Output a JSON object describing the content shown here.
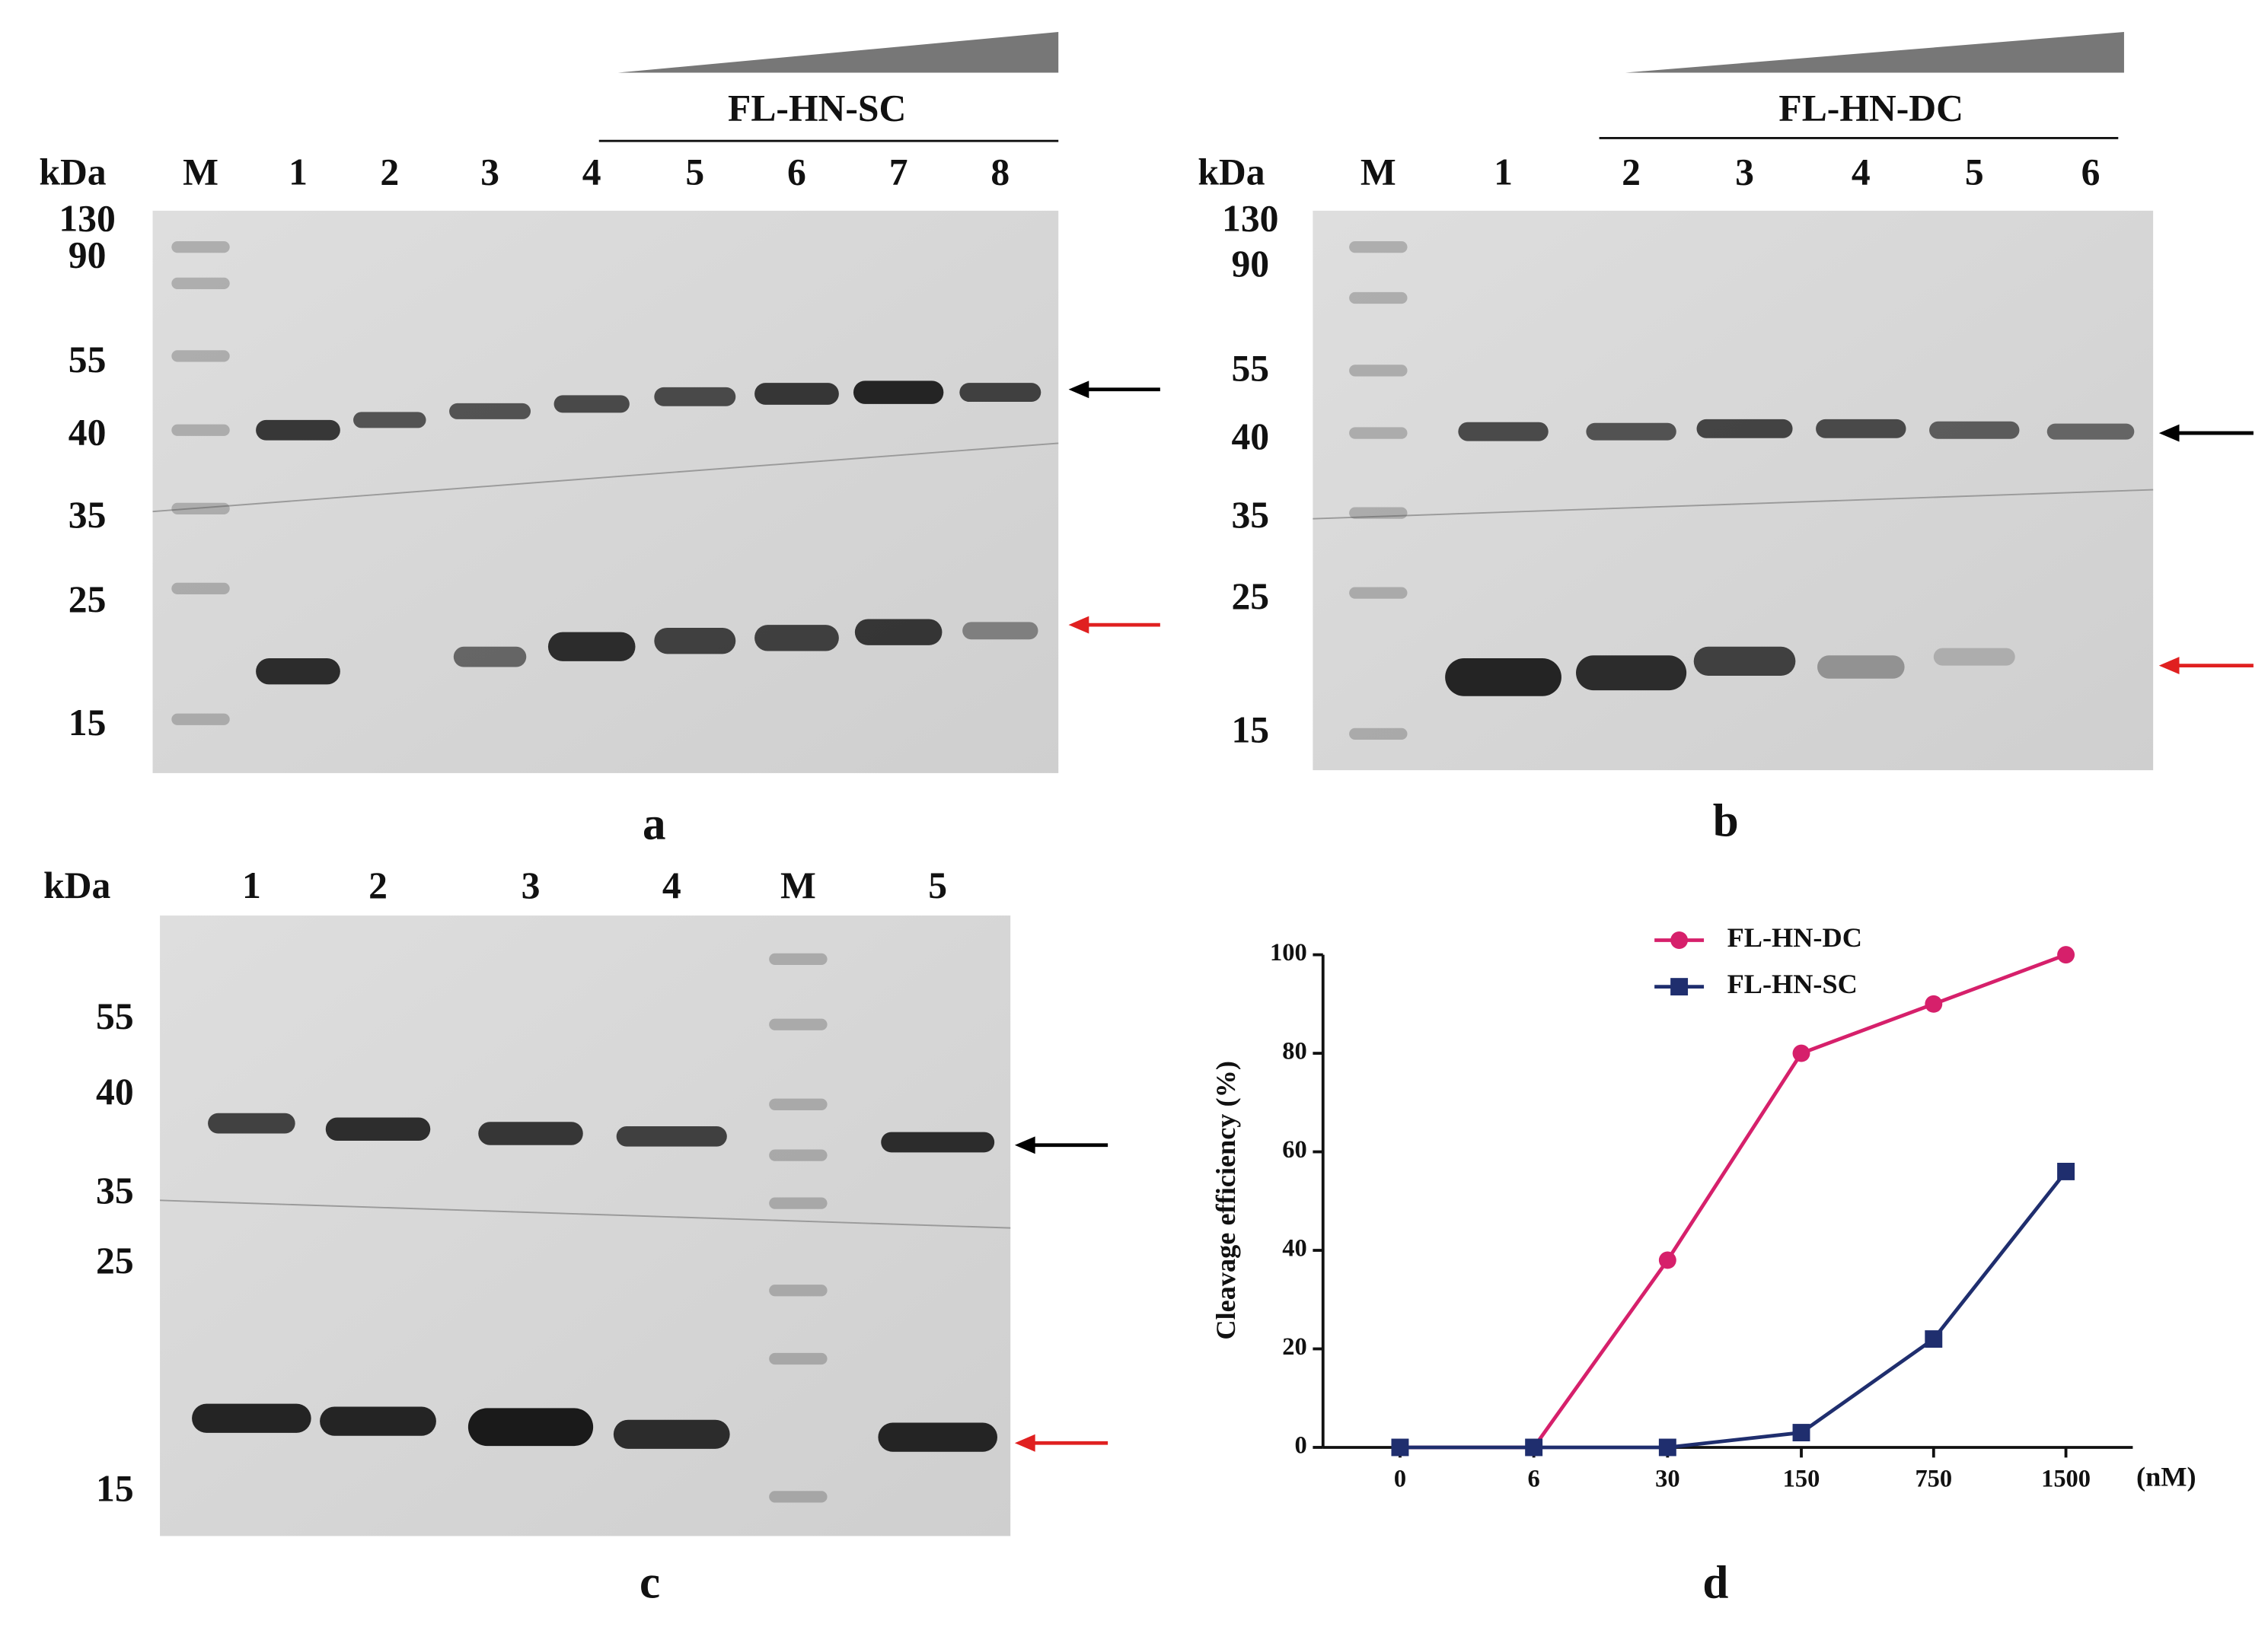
{
  "gels": [
    {
      "letter": "a",
      "header": "FL-HN-SC",
      "unit": "kDa",
      "lanes": [
        "M",
        "1",
        "2",
        "3",
        "4",
        "5",
        "6",
        "7",
        "8"
      ],
      "markers": [
        "130",
        "90",
        "55",
        "40",
        "35",
        "25",
        "15"
      ]
    },
    {
      "letter": "b",
      "header": "FL-HN-DC",
      "unit": "kDa",
      "lanes": [
        "M",
        "1",
        "2",
        "3",
        "4",
        "5",
        "6"
      ],
      "markers": [
        "130",
        "90",
        "55",
        "40",
        "35",
        "25",
        "15"
      ]
    },
    {
      "letter": "c",
      "unit": "kDa",
      "lanes": [
        "1",
        "2",
        "3",
        "4",
        "M",
        "5"
      ],
      "markers": [
        "55",
        "40",
        "35",
        "25",
        "15"
      ]
    }
  ],
  "chart_data": {
    "type": "line",
    "letter": "d",
    "y_label": "Cleavage efficiency (%)",
    "x_label": "(nM)",
    "categories": [
      "0",
      "6",
      "30",
      "150",
      "750",
      "1500"
    ],
    "series": [
      {
        "name": "FL-HN-DC",
        "color": "#d6206b",
        "marker": "circle",
        "values": [
          0,
          0,
          38,
          80,
          90,
          100
        ]
      },
      {
        "name": "FL-HN-SC",
        "color": "#1f2e6e",
        "marker": "square",
        "values": [
          0,
          0,
          0,
          3,
          22,
          56
        ]
      }
    ],
    "ylim": [
      0,
      100
    ],
    "yticks": [
      0,
      20,
      40,
      60,
      80,
      100
    ],
    "legend": "top"
  }
}
